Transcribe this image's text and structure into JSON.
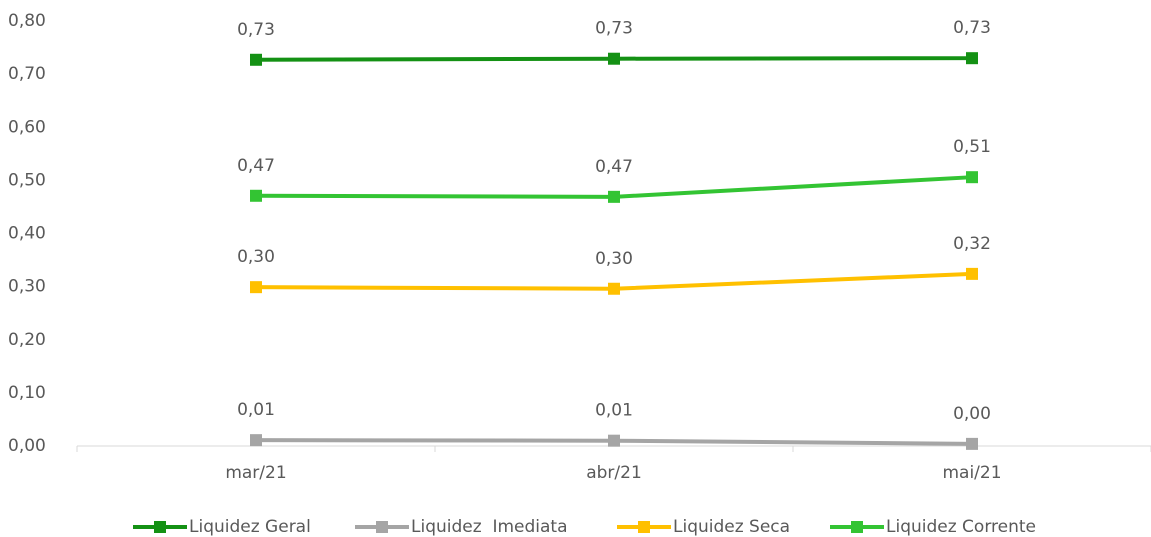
{
  "chart_data": {
    "type": "line",
    "categories": [
      "mar/21",
      "abr/21",
      "mai/21"
    ],
    "series": [
      {
        "name": "Liquidez Geral",
        "color": "#149114",
        "values": [
          0.727,
          0.729,
          0.73
        ],
        "value_labels": [
          "0,73",
          "0,73",
          "0,73"
        ]
      },
      {
        "name": "Liquidez  Imediata",
        "color": "#a5a5a5",
        "values": [
          0.011,
          0.01,
          0.004
        ],
        "value_labels": [
          "0,01",
          "0,01",
          "0,00"
        ]
      },
      {
        "name": "Liquidez Seca",
        "color": "#ffc000",
        "values": [
          0.299,
          0.296,
          0.324
        ],
        "value_labels": [
          "0,30",
          "0,30",
          "0,32"
        ]
      },
      {
        "name": "Liquidez Corrente",
        "color": "#33c433",
        "values": [
          0.471,
          0.469,
          0.506
        ],
        "value_labels": [
          "0,47",
          "0,47",
          "0,51"
        ]
      }
    ],
    "ylim": [
      0,
      0.8
    ],
    "yticks": [
      {
        "value": 0,
        "label": "0,00"
      },
      {
        "value": 0.1,
        "label": "0,10"
      },
      {
        "value": 0.2,
        "label": "0,20"
      },
      {
        "value": 0.3,
        "label": "0,30"
      },
      {
        "value": 0.4,
        "label": "0,40"
      },
      {
        "value": 0.5,
        "label": "0,50"
      },
      {
        "value": 0.6,
        "label": "0,60"
      },
      {
        "value": 0.7,
        "label": "0,70"
      },
      {
        "value": 0.8,
        "label": "0,80"
      }
    ],
    "grid": false,
    "legend": "bottom"
  }
}
